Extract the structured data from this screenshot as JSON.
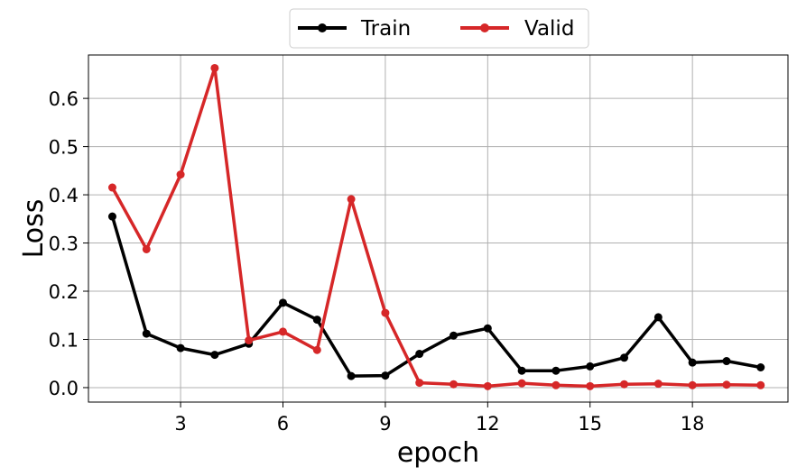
{
  "chart_data": {
    "type": "line",
    "xlabel": "epoch",
    "ylabel": "Loss",
    "xlim": [
      0.3,
      20.8
    ],
    "ylim": [
      -0.03,
      0.69
    ],
    "xticks": [
      3,
      6,
      9,
      12,
      15,
      18
    ],
    "xtick_labels": [
      "3",
      "6",
      "9",
      "12",
      "15",
      "18"
    ],
    "yticks": [
      0.0,
      0.1,
      0.2,
      0.3,
      0.4,
      0.5,
      0.6
    ],
    "ytick_labels": [
      "0.0",
      "0.1",
      "0.2",
      "0.3",
      "0.4",
      "0.5",
      "0.6"
    ],
    "grid": true,
    "legend_position": "top-center",
    "x": [
      1,
      2,
      3,
      4,
      5,
      6,
      7,
      8,
      9,
      10,
      11,
      12,
      13,
      14,
      15,
      16,
      17,
      18,
      19,
      20
    ],
    "series": [
      {
        "name": "Train",
        "color": "#000000",
        "values": [
          0.355,
          0.112,
          0.082,
          0.068,
          0.091,
          0.176,
          0.141,
          0.024,
          0.025,
          0.07,
          0.108,
          0.123,
          0.035,
          0.035,
          0.044,
          0.062,
          0.146,
          0.052,
          0.055,
          0.042
        ]
      },
      {
        "name": "Valid",
        "color": "#d62728",
        "values": [
          0.415,
          0.287,
          0.442,
          0.663,
          0.098,
          0.116,
          0.078,
          0.391,
          0.155,
          0.01,
          0.007,
          0.003,
          0.009,
          0.005,
          0.003,
          0.007,
          0.008,
          0.005,
          0.006,
          0.005
        ]
      }
    ]
  }
}
